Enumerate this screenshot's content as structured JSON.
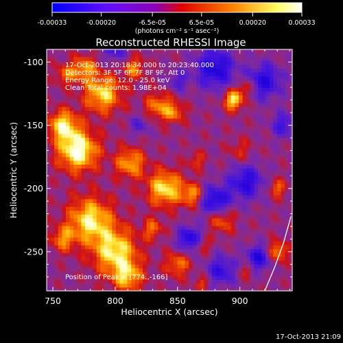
{
  "chart_data": {
    "type": "heatmap",
    "title": "Reconstructed RHESSI Image",
    "xlabel": "Heliocentric X (arcsec)",
    "ylabel": "Heliocentric Y (arcsec)",
    "xlim": [
      745,
      942
    ],
    "ylim": [
      -281,
      -90
    ],
    "x_ticks": [
      "750",
      "800",
      "850",
      "900"
    ],
    "x_tick_values": [
      750,
      800,
      850,
      900
    ],
    "y_ticks": [
      "-100",
      "-150",
      "-200",
      "-250"
    ],
    "y_tick_values": [
      -100,
      -150,
      -200,
      -250
    ],
    "colorbar": {
      "ticks": [
        "-0.00033",
        "-0.00020",
        "-6.5e-05",
        "6.5e-05",
        "0.00020",
        "0.00033"
      ],
      "tick_values": [
        -0.00033,
        -0.0002,
        -6.5e-05,
        6.5e-05,
        0.0002,
        0.00033
      ],
      "range": [
        -0.00033,
        0.00033
      ],
      "units_label": "(photons cm⁻² s⁻¹ asec⁻²)",
      "colors": [
        "#0000ff",
        "#8000c0",
        "#e00000",
        "#ff9000",
        "#ffffa0",
        "#ffffff"
      ]
    },
    "annotations": {
      "time_range": "17-Oct-2013 20:18:34.000 to 20:23:40.000",
      "detectors": "Detectors: 3F 5F 6F 7F 8F 9F, Att 0",
      "energy": "Energy Range: 12.0 - 25.0 keV",
      "clean": "Clean     Total counts: 1.98E+04",
      "peak": "Position of Peak = [774.,-166]"
    },
    "peak_position": [
      774,
      -166
    ],
    "limb_curve": [
      [
        920,
        -281
      ],
      [
        928,
        -262
      ],
      [
        935,
        -243
      ],
      [
        941,
        -222
      ]
    ]
  },
  "footer": {
    "timestamp": "17-Oct-2013 21:09"
  }
}
